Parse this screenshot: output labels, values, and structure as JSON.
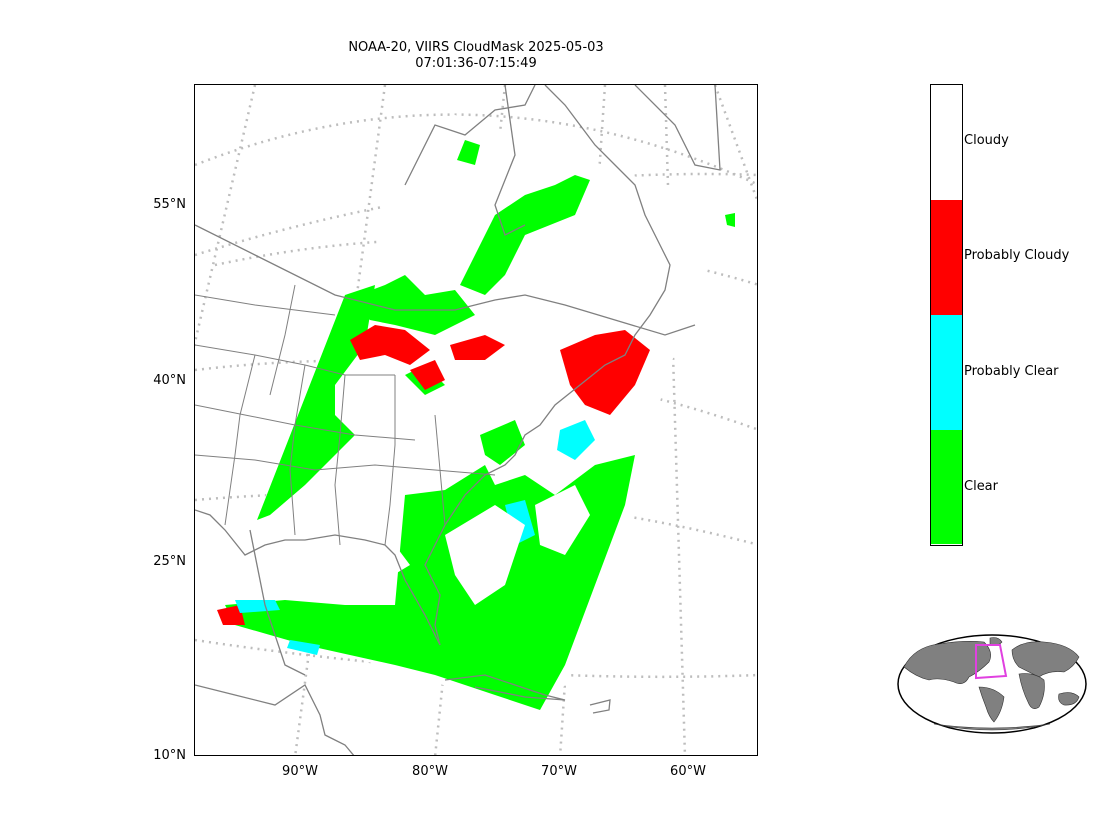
{
  "title": {
    "line1": "NOAA-20, VIIRS CloudMask 2025-05-03",
    "line2": "07:01:36-07:15:49"
  },
  "map": {
    "lat_labels": [
      "55°N",
      "40°N",
      "25°N",
      "10°N"
    ],
    "lon_labels": [
      "90°W",
      "80°W",
      "70°W",
      "60°W"
    ],
    "projection": "conic",
    "gridlines": "dotted"
  },
  "colorbar": {
    "categories": [
      {
        "label": "Cloudy",
        "color": "#ffffff"
      },
      {
        "label": "Probably Cloudy",
        "color": "#ff0000"
      },
      {
        "label": "Probably Clear",
        "color": "#00ffff"
      },
      {
        "label": "Clear",
        "color": "#00ff00"
      }
    ]
  },
  "inset": {
    "land_color": "#808080",
    "box_color": "#e040e0"
  }
}
